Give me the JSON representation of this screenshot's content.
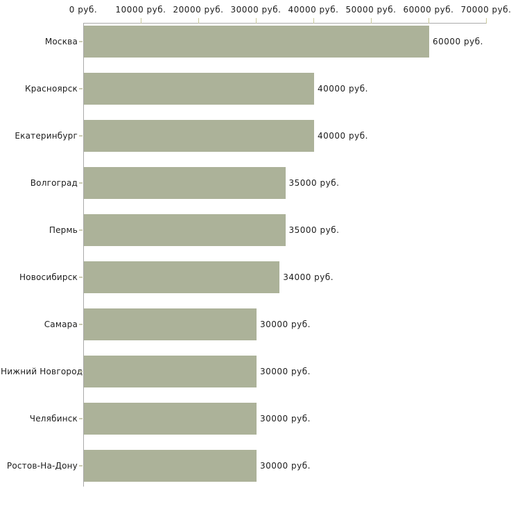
{
  "chart_data": {
    "type": "bar",
    "orientation": "horizontal",
    "categories": [
      "Москва",
      "Красноярск",
      "Екатеринбург",
      "Волгоград",
      "Пермь",
      "Новосибирск",
      "Самара",
      "Нижний Новгород",
      "Челябинск",
      "Ростов-На-Дону"
    ],
    "values": [
      60000,
      40000,
      40000,
      35000,
      35000,
      34000,
      30000,
      30000,
      30000,
      30000
    ],
    "value_labels": [
      "60000 руб.",
      "40000 руб.",
      "40000 руб.",
      "35000 руб.",
      "35000 руб.",
      "34000 руб.",
      "30000 руб.",
      "30000 руб.",
      "30000 руб.",
      "30000 руб."
    ],
    "x_axis": {
      "position": "top",
      "min": 0,
      "max": 70000,
      "ticks": [
        0,
        10000,
        20000,
        30000,
        40000,
        50000,
        60000,
        70000
      ],
      "tick_labels": [
        "0 руб.",
        "10000 руб.",
        "20000 руб.",
        "30000 руб.",
        "40000 руб.",
        "50000 руб.",
        "60000 руб.",
        "70000 руб."
      ]
    },
    "grid": false,
    "legend": false,
    "colors": {
      "bar": "#acb299",
      "axis_line": "#aaaaaa",
      "axis_tick": "#c9c99a",
      "category_tick": "#ccccb3",
      "text": "#1c1c1c",
      "background": "#ffffff"
    }
  }
}
